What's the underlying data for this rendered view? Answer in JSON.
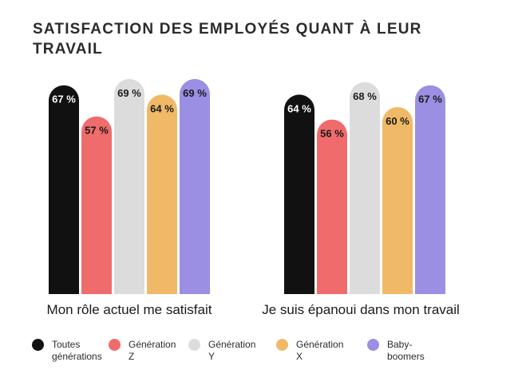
{
  "title": "SATISFACTION DES EMPLOYÉS QUANT À LEUR TRAVAIL",
  "chart_data": {
    "type": "bar",
    "title": "SATISFACTION DES EMPLOYÉS QUANT À LEUR TRAVAIL",
    "categories": [
      "Mon rôle actuel me satisfait",
      "Je suis épanoui dans mon travail"
    ],
    "unit": "%",
    "series": [
      {
        "name": "Toutes générations",
        "color": "#111111",
        "label_color": "#ffffff",
        "values": [
          67,
          64
        ]
      },
      {
        "name": "Génération Z",
        "color": "#f06b6b",
        "label_color": "#1a1a1a",
        "values": [
          57,
          56
        ]
      },
      {
        "name": "Génération Y",
        "color": "#dcdcdc",
        "label_color": "#1a1a1a",
        "values": [
          69,
          68
        ]
      },
      {
        "name": "Génération X",
        "color": "#f0b968",
        "label_color": "#1a1a1a",
        "values": [
          64,
          60
        ]
      },
      {
        "name": "Baby-boomers",
        "color": "#9b8fe3",
        "label_color": "#1a1a1a",
        "values": [
          69,
          67
        ]
      }
    ],
    "legend_position": "bottom",
    "grid": false
  }
}
